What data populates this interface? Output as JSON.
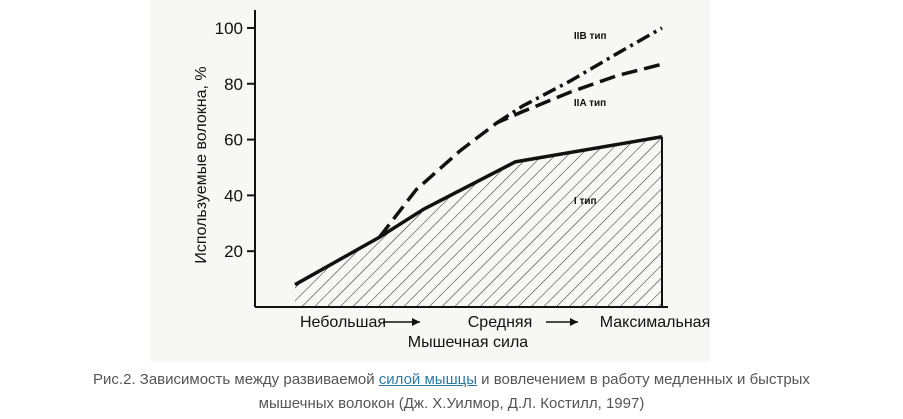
{
  "chart_data": {
    "type": "line",
    "ylabel": "Используемые волокна, %",
    "xlabel": "Мышечная сила",
    "x_ticks": [
      "Небольшая",
      "Средняя",
      "Максимальная"
    ],
    "x_arrow": "→",
    "xlim": [
      0,
      100
    ],
    "ylim": [
      0,
      105
    ],
    "y_ticks": [
      20,
      40,
      60,
      80,
      100
    ],
    "grid": false,
    "series": [
      {
        "name": "I тип",
        "style": "solid-hatched",
        "x": [
          0,
          23,
          35,
          60,
          100
        ],
        "y": [
          8,
          25,
          35,
          52,
          61
        ]
      },
      {
        "name": "IIA тип",
        "style": "dashed",
        "x": [
          23,
          33,
          45,
          55,
          62,
          75,
          88,
          100
        ],
        "y": [
          25,
          42,
          56,
          66,
          70,
          77,
          83,
          87
        ]
      },
      {
        "name": "IIB тип",
        "style": "dash-dot",
        "x": [
          55,
          62,
          75,
          88,
          100
        ],
        "y": [
          66,
          72,
          81,
          91,
          100
        ]
      }
    ],
    "colors": {
      "line": "#111111",
      "hatch": "#222222"
    }
  },
  "caption": {
    "before": "Рис.2. Зависимость между развиваемой ",
    "link": "силой мышцы",
    "after": " и вовлечением в работу медленных и быстрых",
    "line2": "мышечных волокон  (Дж. Х.Уилмор, Д.Л. Костилл, 1997)"
  }
}
